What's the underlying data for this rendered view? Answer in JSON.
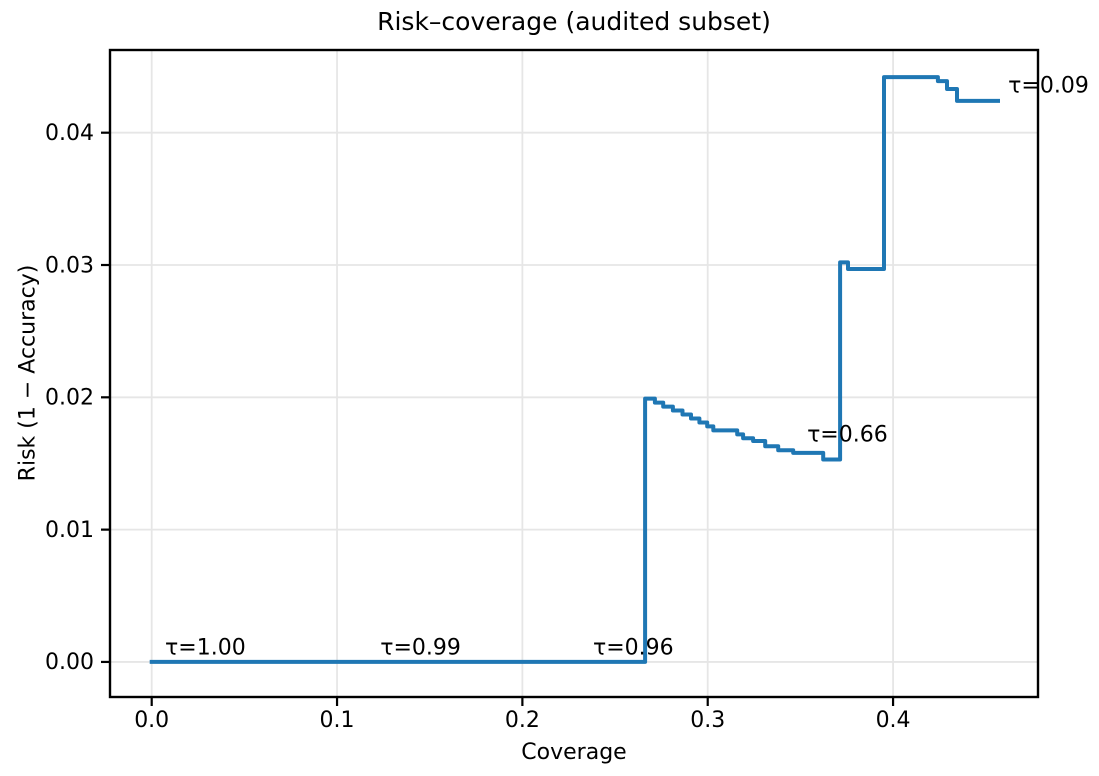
{
  "figure": {
    "background": "#ffffff"
  },
  "chart_data": {
    "type": "line",
    "subtype": "step-post",
    "title": "Risk–coverage (audited subset)",
    "xlabel": "Coverage",
    "ylabel": "Risk (1 − Accuracy)",
    "line_color": "#1f77b4",
    "line_width": 4,
    "grid": true,
    "grid_color": "#e6e6e6",
    "spine_color": "#000000",
    "legend": "none",
    "xlim": [
      -0.0225,
      0.4782
    ],
    "ylim": [
      -0.00265,
      0.04625
    ],
    "x_ticks": {
      "values": [
        0.0,
        0.1,
        0.2,
        0.3,
        0.4
      ],
      "labels": [
        "0.0",
        "0.1",
        "0.2",
        "0.3",
        "0.4"
      ]
    },
    "y_ticks": {
      "values": [
        0.0,
        0.01,
        0.02,
        0.03,
        0.04
      ],
      "labels": [
        "0.00",
        "0.01",
        "0.02",
        "0.03",
        "0.04"
      ]
    },
    "step_points": [
      [
        0.0,
        0.0
      ],
      [
        0.2662,
        0.0199
      ],
      [
        0.2715,
        0.0196
      ],
      [
        0.276,
        0.0193
      ],
      [
        0.2812,
        0.019
      ],
      [
        0.2864,
        0.0187
      ],
      [
        0.291,
        0.0184
      ],
      [
        0.2955,
        0.0181
      ],
      [
        0.2997,
        0.0178
      ],
      [
        0.303,
        0.0175
      ],
      [
        0.3159,
        0.0172
      ],
      [
        0.3191,
        0.0169
      ],
      [
        0.3245,
        0.0167
      ],
      [
        0.331,
        0.0163
      ],
      [
        0.338,
        0.016
      ],
      [
        0.3461,
        0.0158
      ],
      [
        0.3623,
        0.0153
      ],
      [
        0.3714,
        0.0302
      ],
      [
        0.3757,
        0.0297
      ],
      [
        0.3951,
        0.0442
      ],
      [
        0.4242,
        0.0439
      ],
      [
        0.4291,
        0.0433
      ],
      [
        0.4345,
        0.0424
      ]
    ],
    "end_x": 0.4566,
    "annotations": [
      {
        "text": "τ=1.00",
        "x": 0.0072,
        "y": 0.0011
      },
      {
        "text": "τ=0.99",
        "x": 0.1233,
        "y": 0.0011
      },
      {
        "text": "τ=0.96",
        "x": 0.2381,
        "y": 0.0011
      },
      {
        "text": "τ=0.66",
        "x": 0.3536,
        "y": 0.0172
      },
      {
        "text": "τ=0.09",
        "x": 0.4621,
        "y": 0.0436
      }
    ]
  }
}
